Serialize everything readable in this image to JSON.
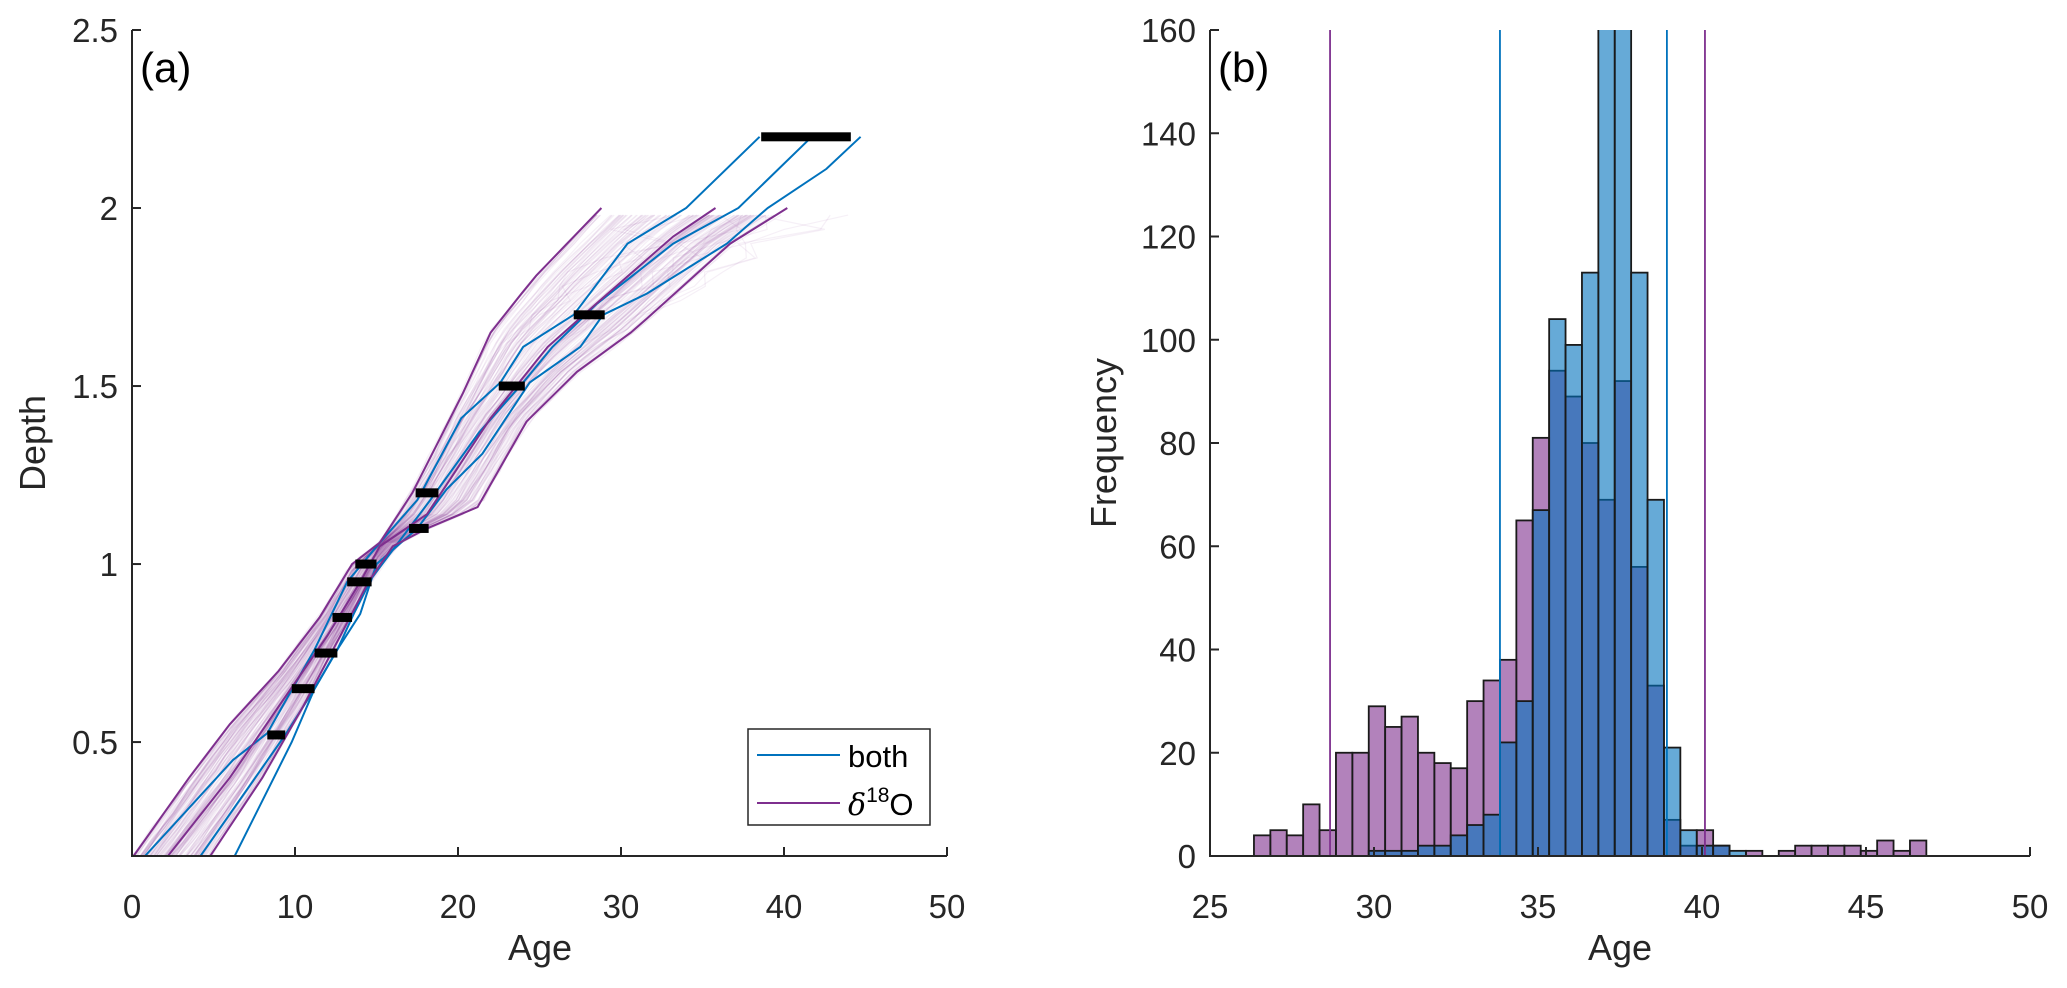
{
  "chart_data": [
    {
      "panel": "(a)",
      "type": "line",
      "title": "",
      "xlabel": "Age",
      "ylabel": "Depth",
      "xlim": [
        0,
        50
      ],
      "ylim": [
        0.18,
        2.5
      ],
      "xticks": [
        0,
        10,
        20,
        30,
        40,
        50
      ],
      "xtick_labels": [
        "0",
        "10",
        "20",
        "30",
        "40",
        "50"
      ],
      "yticks": [
        0.5,
        1,
        1.5,
        2,
        2.5
      ],
      "ytick_labels": [
        "0.5",
        "1",
        "1.5",
        "2",
        "2.5"
      ],
      "grid": false,
      "legend": {
        "placement": "bottom-right",
        "entries": [
          {
            "label": "both",
            "color": "#0072BD"
          },
          {
            "label_prefix": "δ",
            "label_sup": "18",
            "label_suffix": "O",
            "color": "#7E2F8E"
          }
        ]
      },
      "series": [
        {
          "name": "both",
          "role": "lower-bound",
          "color": "#0072BD",
          "points": [
            [
              0.8,
              0.18
            ],
            [
              6.2,
              0.45
            ],
            [
              8.3,
              0.525
            ],
            [
              11.2,
              0.76
            ],
            [
              13.2,
              0.95
            ],
            [
              15.2,
              1.06
            ],
            [
              17.5,
              1.18
            ],
            [
              20.2,
              1.41
            ],
            [
              22.6,
              1.51
            ],
            [
              24.0,
              1.61
            ],
            [
              27.1,
              1.7
            ],
            [
              30.4,
              1.9
            ],
            [
              34.0,
              2.0
            ],
            [
              38.5,
              2.2
            ]
          ]
        },
        {
          "name": "both",
          "role": "median",
          "color": "#0072BD",
          "points": [
            [
              4.2,
              0.18
            ],
            [
              9.4,
              0.52
            ],
            [
              11.2,
              0.65
            ],
            [
              12.6,
              0.76
            ],
            [
              13.6,
              0.86
            ],
            [
              14.7,
              0.96
            ],
            [
              16.5,
              1.07
            ],
            [
              18.3,
              1.18
            ],
            [
              21.3,
              1.37
            ],
            [
              24.0,
              1.51
            ],
            [
              25.8,
              1.61
            ],
            [
              28.5,
              1.73
            ],
            [
              33.2,
              1.9
            ],
            [
              37.2,
              2.0
            ],
            [
              41.7,
              2.2
            ]
          ]
        },
        {
          "name": "both",
          "role": "upper-bound",
          "color": "#0072BD",
          "points": [
            [
              6.3,
              0.18
            ],
            [
              9.8,
              0.5
            ],
            [
              11.2,
              0.65
            ],
            [
              12.6,
              0.76
            ],
            [
              14.0,
              0.86
            ],
            [
              15.0,
              1.0
            ],
            [
              17.5,
              1.1
            ],
            [
              19.3,
              1.21
            ],
            [
              21.5,
              1.31
            ],
            [
              24.4,
              1.51
            ],
            [
              27.5,
              1.61
            ],
            [
              28.9,
              1.7
            ],
            [
              31.6,
              1.76
            ],
            [
              36.5,
              1.9
            ],
            [
              39.0,
              2.0
            ],
            [
              42.6,
              2.11
            ],
            [
              44.7,
              2.2
            ]
          ]
        },
        {
          "name": "δ18O",
          "role": "lower-bound",
          "color": "#7E2F8E",
          "points": [
            [
              0.1,
              0.18
            ],
            [
              3.5,
              0.4
            ],
            [
              6.0,
              0.55
            ],
            [
              9.0,
              0.7
            ],
            [
              11.5,
              0.85
            ],
            [
              13.5,
              1.0
            ],
            [
              15.2,
              1.06
            ],
            [
              17.2,
              1.2
            ],
            [
              20.3,
              1.48
            ],
            [
              22.0,
              1.65
            ],
            [
              23.9,
              1.76
            ],
            [
              24.8,
              1.81
            ],
            [
              28.8,
              2.0
            ]
          ]
        },
        {
          "name": "δ18O",
          "role": "median",
          "color": "#7E2F8E",
          "points": [
            [
              2.2,
              0.18
            ],
            [
              6.0,
              0.4
            ],
            [
              9.0,
              0.6
            ],
            [
              12.0,
              0.8
            ],
            [
              14.0,
              0.95
            ],
            [
              15.2,
              1.05
            ],
            [
              18.1,
              1.14
            ],
            [
              22.0,
              1.41
            ],
            [
              25.5,
              1.61
            ],
            [
              28.7,
              1.74
            ],
            [
              33.2,
              1.92
            ],
            [
              35.8,
              2.0
            ]
          ]
        },
        {
          "name": "δ18O",
          "role": "upper-bound",
          "color": "#7E2F8E",
          "points": [
            [
              4.8,
              0.18
            ],
            [
              8.0,
              0.4
            ],
            [
              10.5,
              0.6
            ],
            [
              12.8,
              0.8
            ],
            [
              14.5,
              0.95
            ],
            [
              16.0,
              1.05
            ],
            [
              18.1,
              1.1
            ],
            [
              21.2,
              1.16
            ],
            [
              24.2,
              1.4
            ],
            [
              27.3,
              1.54
            ],
            [
              30.6,
              1.65
            ],
            [
              31.6,
              1.69
            ],
            [
              36.7,
              1.9
            ],
            [
              40.2,
              2.0
            ]
          ]
        }
      ],
      "ensemble": {
        "name": "δ18O realizations",
        "color": "#7E2F8E",
        "depth_range": [
          0.18,
          2.0
        ],
        "age_spread_at_top": [
          28,
          47
        ]
      },
      "age_constraints": [
        {
          "age_min": 8.3,
          "age_max": 9.4,
          "depth": 0.52
        },
        {
          "age_min": 9.8,
          "age_max": 11.2,
          "depth": 0.65
        },
        {
          "age_min": 11.2,
          "age_max": 12.6,
          "depth": 0.75
        },
        {
          "age_min": 12.3,
          "age_max": 13.5,
          "depth": 0.85
        },
        {
          "age_min": 13.2,
          "age_max": 14.7,
          "depth": 0.95
        },
        {
          "age_min": 13.7,
          "age_max": 15.0,
          "depth": 1.0
        },
        {
          "age_min": 17.0,
          "age_max": 18.2,
          "depth": 1.1
        },
        {
          "age_min": 17.4,
          "age_max": 18.8,
          "depth": 1.2
        },
        {
          "age_min": 22.5,
          "age_max": 24.1,
          "depth": 1.5
        },
        {
          "age_min": 27.1,
          "age_max": 29.0,
          "depth": 1.7
        },
        {
          "age_min": 38.6,
          "age_max": 44.1,
          "depth": 2.2
        }
      ]
    },
    {
      "panel": "(b)",
      "type": "bar",
      "subtype": "overlapping-histogram",
      "title": "",
      "xlabel": "Age",
      "ylabel": "Frequency",
      "xlim": [
        25,
        50
      ],
      "ylim": [
        0,
        160
      ],
      "xticks": [
        25,
        30,
        35,
        40,
        45,
        50
      ],
      "xtick_labels": [
        "25",
        "30",
        "35",
        "40",
        "45",
        "50"
      ],
      "yticks": [
        0,
        20,
        40,
        60,
        80,
        100,
        120,
        140,
        160
      ],
      "ytick_labels": [
        "0",
        "20",
        "40",
        "60",
        "80",
        "100",
        "120",
        "140",
        "160"
      ],
      "grid": false,
      "bin_start": 26.34,
      "bin_width": 0.5,
      "series": [
        {
          "name": "δ18O",
          "color": "#7E2F8E",
          "alpha": 0.6,
          "values": [
            4,
            5,
            4,
            10,
            5,
            20,
            20,
            29,
            25,
            27,
            20,
            18,
            17,
            30,
            34,
            38,
            65,
            81,
            94,
            89,
            80,
            69,
            92,
            56,
            33,
            7,
            2,
            5,
            2,
            0,
            1,
            0,
            1,
            2,
            2,
            2,
            2,
            1,
            3,
            1,
            3
          ]
        },
        {
          "name": "both",
          "color": "#0072BD",
          "alpha": 0.6,
          "values": [
            0,
            0,
            0,
            0,
            0,
            0,
            0,
            1,
            1,
            1,
            2,
            2,
            4,
            6,
            8,
            22,
            30,
            67,
            104,
            99,
            113,
            165,
            165,
            113,
            69,
            21,
            5,
            2,
            2,
            1
          ]
        }
      ],
      "clipped_note": "two 'both' bins near age 37-38 exceed the 160 axis limit",
      "reference_lines": [
        {
          "series": "δ18O",
          "age": 28.66,
          "color": "#7E2F8E"
        },
        {
          "series": "both",
          "age": 33.84,
          "color": "#0072BD"
        },
        {
          "series": "both",
          "age": 38.93,
          "color": "#0072BD"
        },
        {
          "series": "δ18O",
          "age": 40.09,
          "color": "#7E2F8E"
        }
      ]
    }
  ]
}
